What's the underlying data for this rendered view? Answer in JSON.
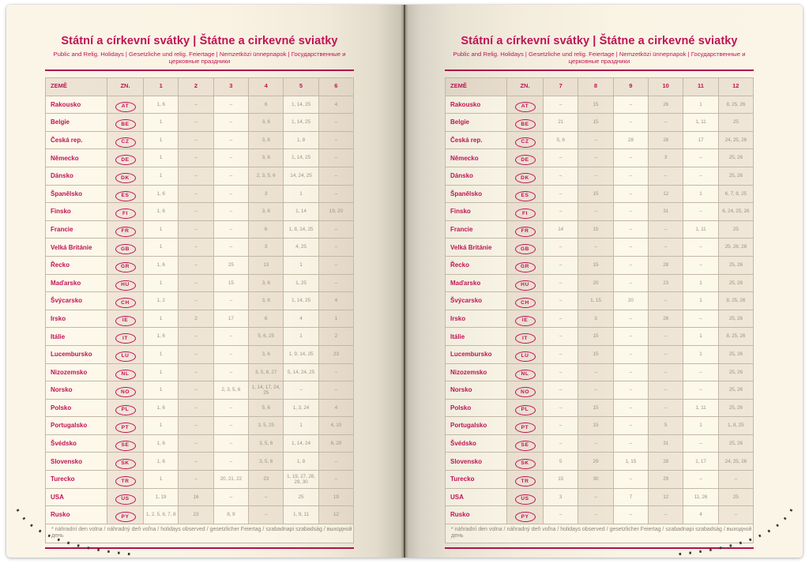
{
  "book": {
    "page_title": "Státní a církevní svátky | Štátne a cirkevné sviatky",
    "page_subtitle": "Public and Relig. Holidays | Gesetzliche und relig. Feiertage | Nemzetközi ünnepnapok | Государственные и церковные праздники",
    "footnote": "* náhradní den volna / náhradný deň voľna / holidays observed / gesetzlicher Feiertag / szabadnapi szabadság / выходной день",
    "colors": {
      "accent": "#c01355",
      "rule": "#ae124e",
      "cell_text": "#9c9388",
      "footnote_text": "#8e8579",
      "page_cream": "#faf4e6",
      "stitch_dots": "#3c3832"
    },
    "left_table": {
      "headers": [
        "ZEMĚ",
        "ZN.",
        "1",
        "2",
        "3",
        "4",
        "5",
        "6"
      ],
      "rows": [
        {
          "country": "Rakousko",
          "code": "AT",
          "values": [
            "1, 6",
            "–",
            "–",
            "6",
            "1, 14, 25",
            "4"
          ]
        },
        {
          "country": "Belgie",
          "code": "BE",
          "values": [
            "1",
            "–",
            "–",
            "3, 6",
            "1, 14, 25",
            "–"
          ]
        },
        {
          "country": "Česká rep.",
          "code": "CZ",
          "values": [
            "1",
            "–",
            "–",
            "3, 6",
            "1, 8",
            "–"
          ]
        },
        {
          "country": "Německo",
          "code": "DE",
          "values": [
            "1",
            "–",
            "–",
            "3, 6",
            "1, 14, 25",
            "–"
          ]
        },
        {
          "country": "Dánsko",
          "code": "DK",
          "values": [
            "1",
            "–",
            "–",
            "2, 3, 5, 6",
            "14, 24, 25",
            "–"
          ]
        },
        {
          "country": "Španělsko",
          "code": "ES",
          "values": [
            "1, 6",
            "–",
            "–",
            "3",
            "1",
            "–"
          ]
        },
        {
          "country": "Finsko",
          "code": "FI",
          "values": [
            "1, 6",
            "–",
            "–",
            "3, 6",
            "1, 14",
            "19, 20"
          ]
        },
        {
          "country": "Francie",
          "code": "FR",
          "values": [
            "1",
            "–",
            "–",
            "6",
            "1, 8, 14, 25",
            "–"
          ]
        },
        {
          "country": "Velká Británie",
          "code": "GB",
          "values": [
            "1",
            "–",
            "–",
            "3",
            "4, 25",
            "–"
          ]
        },
        {
          "country": "Řecko",
          "code": "GR",
          "values": [
            "1, 6",
            "–",
            "25",
            "13",
            "1",
            "–"
          ]
        },
        {
          "country": "Maďarsko",
          "code": "HU",
          "values": [
            "1",
            "–",
            "15",
            "3, 6",
            "1, 25",
            "–"
          ]
        },
        {
          "country": "Švýcarsko",
          "code": "CH",
          "values": [
            "1, 2",
            "–",
            "–",
            "3, 6",
            "1, 14, 25",
            "4"
          ]
        },
        {
          "country": "Irsko",
          "code": "IE",
          "values": [
            "1",
            "2",
            "17",
            "6",
            "4",
            "1"
          ]
        },
        {
          "country": "Itálie",
          "code": "IT",
          "values": [
            "1, 6",
            "–",
            "–",
            "5, 6, 25",
            "1",
            "2"
          ]
        },
        {
          "country": "Lucembursko",
          "code": "LU",
          "values": [
            "1",
            "–",
            "–",
            "3, 6",
            "1, 9, 14, 25",
            "23"
          ]
        },
        {
          "country": "Nizozemsko",
          "code": "NL",
          "values": [
            "1",
            "–",
            "–",
            "3, 5, 6, 27",
            "5, 14, 24, 25",
            "–"
          ]
        },
        {
          "country": "Norsko",
          "code": "NO",
          "values": [
            "1",
            "–",
            "2, 3, 5, 6",
            "1, 14, 17, 24, 25",
            "–",
            "–"
          ]
        },
        {
          "country": "Polsko",
          "code": "PL",
          "values": [
            "1, 6",
            "–",
            "–",
            "5, 6",
            "1, 3, 24",
            "4"
          ]
        },
        {
          "country": "Portugalsko",
          "code": "PT",
          "values": [
            "1",
            "–",
            "–",
            "3, 5, 25",
            "1",
            "4, 10"
          ]
        },
        {
          "country": "Švédsko",
          "code": "SE",
          "values": [
            "1, 6",
            "–",
            "–",
            "3, 5, 6",
            "1, 14, 24",
            "6, 20"
          ]
        },
        {
          "country": "Slovensko",
          "code": "SK",
          "values": [
            "1, 6",
            "–",
            "–",
            "3, 5, 6",
            "1, 8",
            "–"
          ]
        },
        {
          "country": "Turecko",
          "code": "TR",
          "values": [
            "1",
            "–",
            "20, 21, 22",
            "23",
            "1, 19, 27, 28, 29, 30",
            "–"
          ]
        },
        {
          "country": "USA",
          "code": "US",
          "values": [
            "1, 19",
            "16",
            "–",
            "–",
            "25",
            "19"
          ]
        },
        {
          "country": "Rusko",
          "code": "PY",
          "values": [
            "1, 2, 5, 6, 7, 8",
            "23",
            "8, 9",
            "–",
            "1, 9, 11",
            "12"
          ]
        }
      ]
    },
    "right_table": {
      "headers": [
        "ZEMĚ",
        "ZN.",
        "7",
        "8",
        "9",
        "10",
        "11",
        "12"
      ],
      "rows": [
        {
          "country": "Rakousko",
          "code": "AT",
          "values": [
            "–",
            "15",
            "–",
            "26",
            "1",
            "8, 25, 26"
          ]
        },
        {
          "country": "Belgie",
          "code": "BE",
          "values": [
            "21",
            "15",
            "–",
            "–",
            "1, 11",
            "25"
          ]
        },
        {
          "country": "Česká rep.",
          "code": "CZ",
          "values": [
            "5, 6",
            "–",
            "28",
            "28",
            "17",
            "24, 25, 26"
          ]
        },
        {
          "country": "Německo",
          "code": "DE",
          "values": [
            "–",
            "–",
            "–",
            "3",
            "–",
            "25, 26"
          ]
        },
        {
          "country": "Dánsko",
          "code": "DK",
          "values": [
            "–",
            "–",
            "–",
            "–",
            "–",
            "25, 26"
          ]
        },
        {
          "country": "Španělsko",
          "code": "ES",
          "values": [
            "–",
            "15",
            "–",
            "12",
            "1",
            "6, 7, 8, 25"
          ]
        },
        {
          "country": "Finsko",
          "code": "FI",
          "values": [
            "–",
            "–",
            "–",
            "31",
            "–",
            "6, 24, 25, 26"
          ]
        },
        {
          "country": "Francie",
          "code": "FR",
          "values": [
            "14",
            "15",
            "–",
            "–",
            "1, 11",
            "25"
          ]
        },
        {
          "country": "Velká Británie",
          "code": "GB",
          "values": [
            "–",
            "–",
            "–",
            "–",
            "–",
            "25, 26, 28"
          ]
        },
        {
          "country": "Řecko",
          "code": "GR",
          "values": [
            "–",
            "15",
            "–",
            "28",
            "–",
            "25, 26"
          ]
        },
        {
          "country": "Maďarsko",
          "code": "HU",
          "values": [
            "–",
            "20",
            "–",
            "23",
            "1",
            "25, 26"
          ]
        },
        {
          "country": "Švýcarsko",
          "code": "CH",
          "values": [
            "–",
            "1, 15",
            "20",
            "–",
            "1",
            "8, 25, 26"
          ]
        },
        {
          "country": "Irsko",
          "code": "IE",
          "values": [
            "–",
            "3",
            "–",
            "26",
            "–",
            "25, 26"
          ]
        },
        {
          "country": "Itálie",
          "code": "IT",
          "values": [
            "–",
            "15",
            "–",
            "–",
            "1",
            "8, 25, 26"
          ]
        },
        {
          "country": "Lucembursko",
          "code": "LU",
          "values": [
            "–",
            "15",
            "–",
            "–",
            "1",
            "25, 26"
          ]
        },
        {
          "country": "Nizozemsko",
          "code": "NL",
          "values": [
            "–",
            "–",
            "–",
            "–",
            "–",
            "25, 26"
          ]
        },
        {
          "country": "Norsko",
          "code": "NO",
          "values": [
            "–",
            "–",
            "–",
            "–",
            "–",
            "25, 26"
          ]
        },
        {
          "country": "Polsko",
          "code": "PL",
          "values": [
            "–",
            "15",
            "–",
            "–",
            "1, 11",
            "25, 26"
          ]
        },
        {
          "country": "Portugalsko",
          "code": "PT",
          "values": [
            "–",
            "15",
            "–",
            "5",
            "1",
            "1, 8, 25"
          ]
        },
        {
          "country": "Švédsko",
          "code": "SE",
          "values": [
            "–",
            "–",
            "–",
            "31",
            "–",
            "25, 26"
          ]
        },
        {
          "country": "Slovensko",
          "code": "SK",
          "values": [
            "5",
            "29",
            "1, 15",
            "28",
            "1, 17",
            "24, 25, 26"
          ]
        },
        {
          "country": "Turecko",
          "code": "TR",
          "values": [
            "15",
            "30",
            "–",
            "29",
            "–",
            "–"
          ]
        },
        {
          "country": "USA",
          "code": "US",
          "values": [
            "3",
            "–",
            "7",
            "12",
            "11, 26",
            "25"
          ]
        },
        {
          "country": "Rusko",
          "code": "PY",
          "values": [
            "–",
            "–",
            "–",
            "–",
            "4",
            "–"
          ]
        }
      ]
    }
  }
}
